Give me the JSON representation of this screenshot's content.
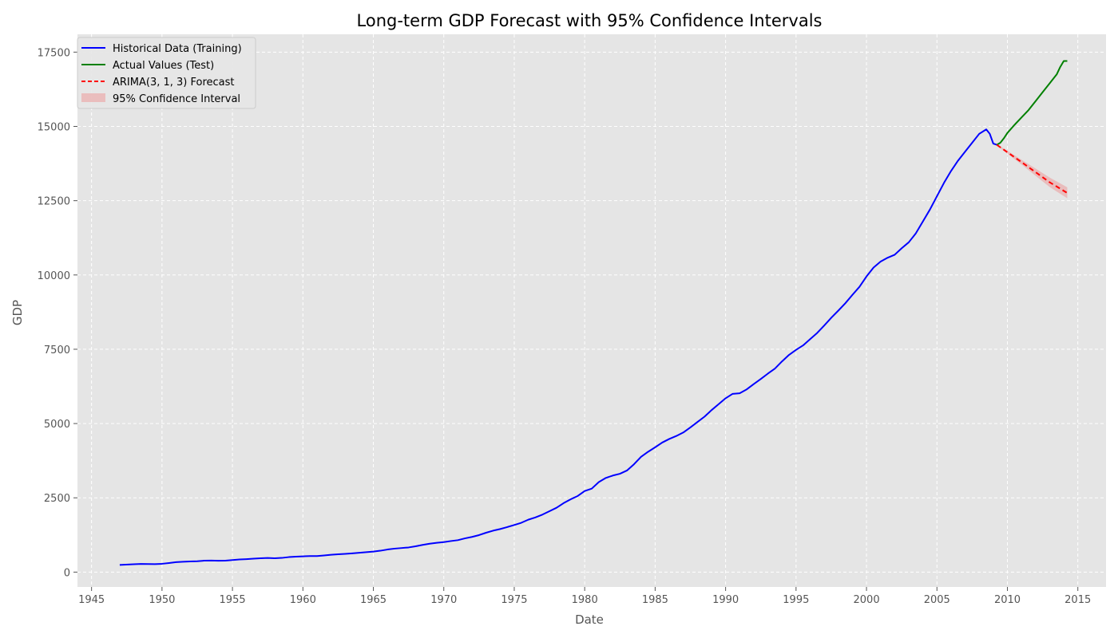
{
  "chart_data": {
    "type": "line",
    "title": "Long-term GDP Forecast with 95% Confidence Intervals",
    "xlabel": "Date",
    "ylabel": "GDP",
    "xlim": [
      1944,
      2017
    ],
    "ylim": [
      -500,
      18100
    ],
    "x_ticks": [
      1945,
      1950,
      1955,
      1960,
      1965,
      1970,
      1975,
      1980,
      1985,
      1990,
      1995,
      2000,
      2005,
      2010,
      2015
    ],
    "y_ticks": [
      0,
      2500,
      5000,
      7500,
      10000,
      12500,
      15000,
      17500
    ],
    "grid": true,
    "legend_position": "top-left",
    "background_color": "#e5e5e5",
    "series": [
      {
        "name": "Historical Data (Training)",
        "color": "#0000ff",
        "style": "solid",
        "points": [
          [
            1947.0,
            243
          ],
          [
            1948.0,
            265
          ],
          [
            1948.5,
            275
          ],
          [
            1949.0,
            270
          ],
          [
            1949.5,
            268
          ],
          [
            1950.0,
            280
          ],
          [
            1950.5,
            305
          ],
          [
            1951.0,
            335
          ],
          [
            1951.5,
            350
          ],
          [
            1952.0,
            358
          ],
          [
            1952.5,
            365
          ],
          [
            1953.0,
            385
          ],
          [
            1953.5,
            388
          ],
          [
            1954.0,
            382
          ],
          [
            1954.5,
            385
          ],
          [
            1955.0,
            405
          ],
          [
            1955.5,
            425
          ],
          [
            1956.0,
            437
          ],
          [
            1956.5,
            452
          ],
          [
            1957.0,
            465
          ],
          [
            1957.5,
            475
          ],
          [
            1958.0,
            465
          ],
          [
            1958.5,
            478
          ],
          [
            1959.0,
            505
          ],
          [
            1959.5,
            520
          ],
          [
            1960.0,
            530
          ],
          [
            1960.5,
            540
          ],
          [
            1961.0,
            540
          ],
          [
            1961.5,
            560
          ],
          [
            1962.0,
            585
          ],
          [
            1962.5,
            600
          ],
          [
            1963.0,
            615
          ],
          [
            1963.5,
            630
          ],
          [
            1964.0,
            650
          ],
          [
            1964.5,
            670
          ],
          [
            1965.0,
            690
          ],
          [
            1965.5,
            720
          ],
          [
            1966.0,
            760
          ],
          [
            1966.5,
            790
          ],
          [
            1967.0,
            810
          ],
          [
            1967.5,
            830
          ],
          [
            1968.0,
            870
          ],
          [
            1968.5,
            915
          ],
          [
            1969.0,
            955
          ],
          [
            1969.5,
            985
          ],
          [
            1970.0,
            1010
          ],
          [
            1970.5,
            1045
          ],
          [
            1971.0,
            1075
          ],
          [
            1971.5,
            1135
          ],
          [
            1972.0,
            1185
          ],
          [
            1972.5,
            1245
          ],
          [
            1973.0,
            1325
          ],
          [
            1973.5,
            1395
          ],
          [
            1974.0,
            1450
          ],
          [
            1974.5,
            1515
          ],
          [
            1975.0,
            1585
          ],
          [
            1975.5,
            1660
          ],
          [
            1976.0,
            1765
          ],
          [
            1976.5,
            1840
          ],
          [
            1977.0,
            1935
          ],
          [
            1977.5,
            2050
          ],
          [
            1978.0,
            2165
          ],
          [
            1978.5,
            2320
          ],
          [
            1979.0,
            2450
          ],
          [
            1979.5,
            2560
          ],
          [
            1980.0,
            2730
          ],
          [
            1980.5,
            2810
          ],
          [
            1981.0,
            3030
          ],
          [
            1981.5,
            3170
          ],
          [
            1982.0,
            3250
          ],
          [
            1982.5,
            3310
          ],
          [
            1983.0,
            3420
          ],
          [
            1983.5,
            3630
          ],
          [
            1984.0,
            3880
          ],
          [
            1984.5,
            4050
          ],
          [
            1985.0,
            4200
          ],
          [
            1985.5,
            4360
          ],
          [
            1986.0,
            4480
          ],
          [
            1986.5,
            4580
          ],
          [
            1987.0,
            4700
          ],
          [
            1987.5,
            4870
          ],
          [
            1988.0,
            5050
          ],
          [
            1988.5,
            5230
          ],
          [
            1989.0,
            5450
          ],
          [
            1989.5,
            5650
          ],
          [
            1990.0,
            5850
          ],
          [
            1990.5,
            6000
          ],
          [
            1991.0,
            6020
          ],
          [
            1991.5,
            6150
          ],
          [
            1992.0,
            6330
          ],
          [
            1992.5,
            6500
          ],
          [
            1993.0,
            6680
          ],
          [
            1993.5,
            6850
          ],
          [
            1994.0,
            7090
          ],
          [
            1994.5,
            7310
          ],
          [
            1995.0,
            7480
          ],
          [
            1995.5,
            7630
          ],
          [
            1996.0,
            7840
          ],
          [
            1996.5,
            8050
          ],
          [
            1997.0,
            8300
          ],
          [
            1997.5,
            8560
          ],
          [
            1998.0,
            8800
          ],
          [
            1998.5,
            9050
          ],
          [
            1999.0,
            9330
          ],
          [
            1999.5,
            9600
          ],
          [
            2000.0,
            9950
          ],
          [
            2000.5,
            10250
          ],
          [
            2001.0,
            10450
          ],
          [
            2001.5,
            10580
          ],
          [
            2002.0,
            10680
          ],
          [
            2002.5,
            10900
          ],
          [
            2003.0,
            11100
          ],
          [
            2003.5,
            11400
          ],
          [
            2004.0,
            11800
          ],
          [
            2004.5,
            12200
          ],
          [
            2005.0,
            12650
          ],
          [
            2005.5,
            13100
          ],
          [
            2006.0,
            13500
          ],
          [
            2006.5,
            13850
          ],
          [
            2007.0,
            14150
          ],
          [
            2007.5,
            14450
          ],
          [
            2008.0,
            14750
          ],
          [
            2008.5,
            14900
          ],
          [
            2008.75,
            14750
          ],
          [
            2009.0,
            14420
          ],
          [
            2009.25,
            14380
          ]
        ]
      },
      {
        "name": "Actual Values (Test)",
        "color": "#008000",
        "style": "solid",
        "points": [
          [
            2009.25,
            14380
          ],
          [
            2009.5,
            14450
          ],
          [
            2009.75,
            14600
          ],
          [
            2010.0,
            14780
          ],
          [
            2010.5,
            15050
          ],
          [
            2011.0,
            15300
          ],
          [
            2011.5,
            15550
          ],
          [
            2012.0,
            15850
          ],
          [
            2012.5,
            16150
          ],
          [
            2013.0,
            16450
          ],
          [
            2013.5,
            16750
          ],
          [
            2013.75,
            17000
          ],
          [
            2014.0,
            17200
          ],
          [
            2014.25,
            17200
          ]
        ]
      },
      {
        "name": "ARIMA(3, 1, 3) Forecast",
        "color": "#ff0000",
        "style": "dashed",
        "points": [
          [
            2009.25,
            14380
          ],
          [
            2010.0,
            14130
          ],
          [
            2011.0,
            13800
          ],
          [
            2012.0,
            13460
          ],
          [
            2013.0,
            13120
          ],
          [
            2014.25,
            12760
          ]
        ]
      }
    ],
    "confidence_interval": {
      "name": "95% Confidence Interval",
      "color": "#f08080",
      "x": [
        2009.25,
        2010.0,
        2011.0,
        2012.0,
        2013.0,
        2014.25
      ],
      "lower": [
        14360,
        14080,
        13720,
        13340,
        12960,
        12580
      ],
      "upper": [
        14400,
        14180,
        13880,
        13580,
        13280,
        12950
      ]
    }
  }
}
